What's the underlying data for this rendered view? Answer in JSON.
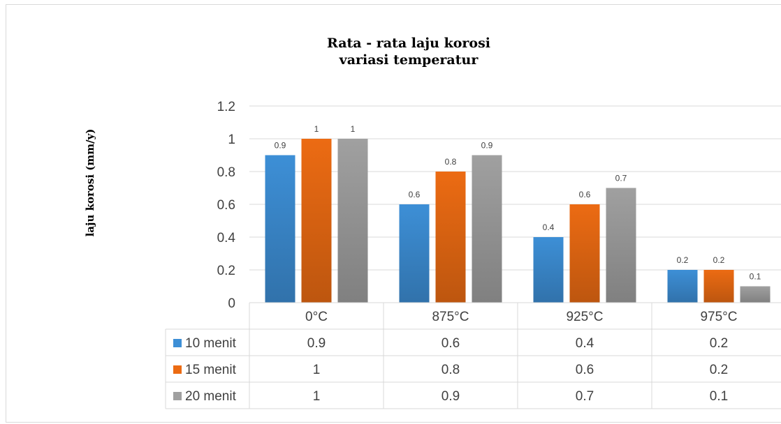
{
  "chart_data": {
    "type": "bar",
    "title": "Rata - rata laju korosi",
    "subtitle": "variasi temperatur",
    "xlabel": "",
    "ylabel": "laju korosi (mm/y)",
    "categories": [
      "0°C",
      "875°C",
      "925°C",
      "975°C"
    ],
    "ylim": [
      0,
      1.2
    ],
    "yticks": [
      "0",
      "0.2",
      "0.4",
      "0.6",
      "0.8",
      "1",
      "1.2"
    ],
    "grid": true,
    "legend": "data-table-left",
    "series": [
      {
        "name": "10 menit",
        "values": [
          0.9,
          0.6,
          0.4,
          0.2
        ],
        "labels": [
          "0.9",
          "0.6",
          "0.4",
          "0.2"
        ],
        "color": "#3d8fd6"
      },
      {
        "name": "15 menit",
        "values": [
          1,
          0.8,
          0.6,
          0.2
        ],
        "labels": [
          "1",
          "0.8",
          "0.6",
          "0.2"
        ],
        "color": "#ec6b13"
      },
      {
        "name": "20 menit",
        "values": [
          1,
          0.9,
          0.7,
          0.1
        ],
        "labels": [
          "1",
          "0.9",
          "0.7",
          "0.1"
        ],
        "color": "#a0a0a0"
      }
    ]
  }
}
